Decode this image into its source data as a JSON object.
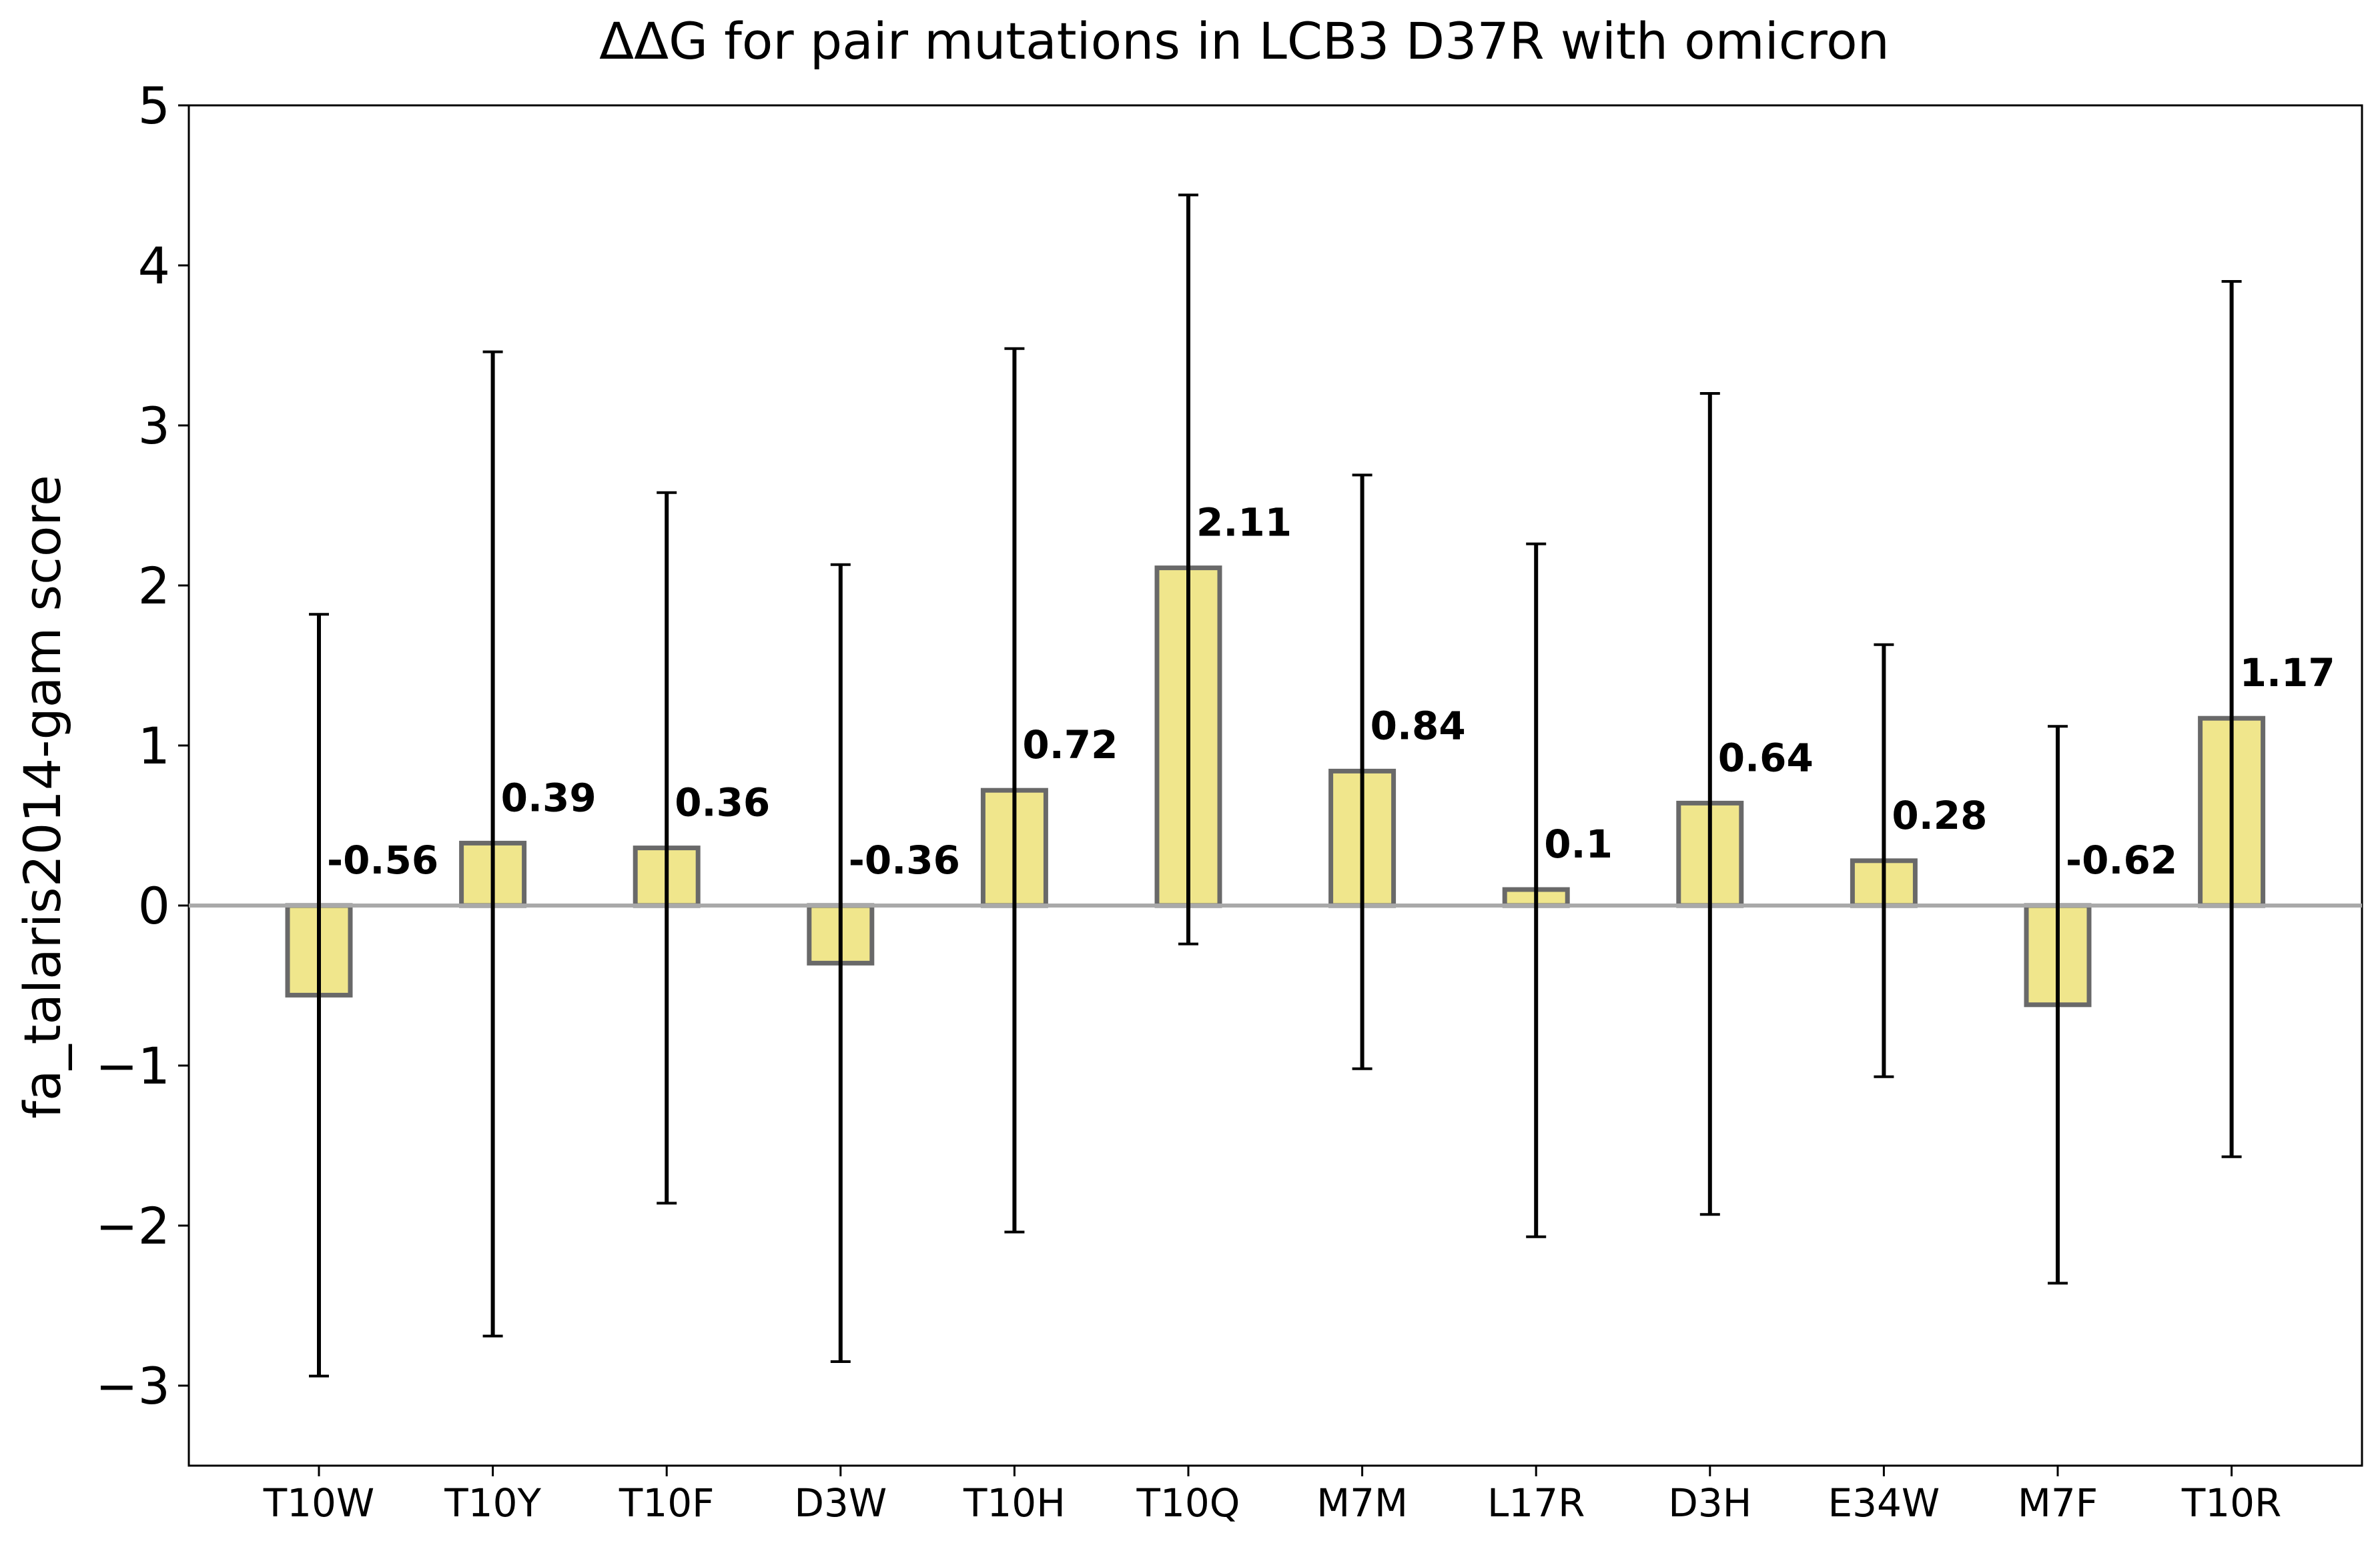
{
  "chart_data": {
    "type": "bar",
    "title": "ΔΔG for pair mutations in LCB3 D37R with omicron",
    "xlabel": "",
    "ylabel": "fa_talaris2014-gam score",
    "ylim": [
      -3.5,
      5
    ],
    "yticks": [
      5,
      4,
      3,
      2,
      1,
      0,
      -1,
      -2,
      -3
    ],
    "ytick_labels": [
      "5",
      "4",
      "3",
      "2",
      "1",
      "0",
      "−1",
      "−2",
      "−3"
    ],
    "grid": false,
    "zero_line": true,
    "categories": [
      "T10W",
      "T10Y",
      "T10F",
      "D3W",
      "T10H",
      "T10Q",
      "M7M",
      "L17R",
      "D3H",
      "E34W",
      "M7F",
      "T10R"
    ],
    "values": [
      -0.56,
      0.39,
      0.36,
      -0.36,
      0.72,
      2.11,
      0.84,
      0.1,
      0.64,
      0.28,
      -0.62,
      1.17
    ],
    "value_labels": [
      "-0.56",
      "0.39",
      "0.36",
      "-0.36",
      "0.72",
      "2.11",
      "0.84",
      "0.1",
      "0.64",
      "0.28",
      "-0.62",
      "1.17"
    ],
    "error_low": [
      -2.94,
      -2.69,
      -1.86,
      -2.85,
      -2.04,
      -0.24,
      -1.02,
      -2.07,
      -1.93,
      -1.07,
      -2.36,
      -1.57
    ],
    "error_high": [
      1.82,
      3.46,
      2.58,
      2.13,
      3.48,
      4.44,
      2.69,
      2.26,
      3.2,
      1.63,
      1.12,
      3.9
    ],
    "colors": {
      "bar_fill": "#f0e68c",
      "bar_edge": "#696969",
      "error_bar": "#000000",
      "zero_line": "#a9a9a9",
      "axis": "#000000"
    }
  }
}
